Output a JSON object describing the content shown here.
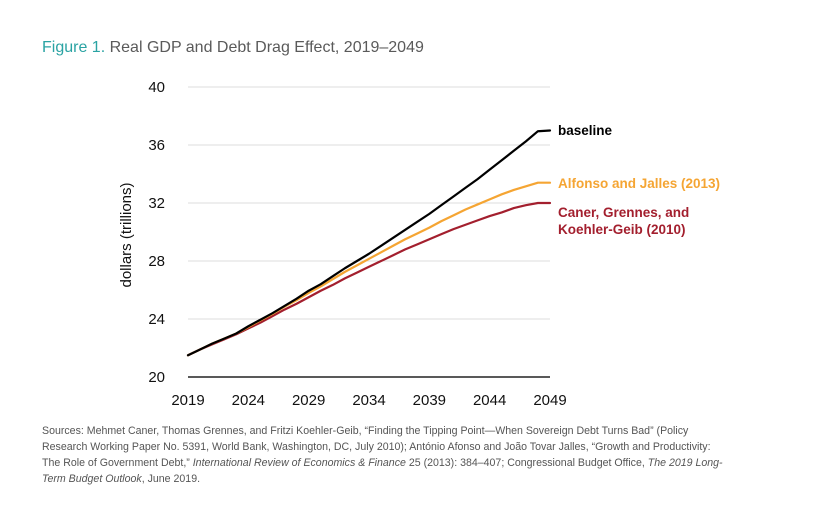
{
  "figure": {
    "label": "Figure 1.",
    "title": "Real GDP and Debt Drag Effect, 2019–2049"
  },
  "chart_data": {
    "type": "line",
    "title": "Real GDP and Debt Drag Effect, 2019–2049",
    "xlabel": "",
    "ylabel": "dollars (trillions)",
    "xlim": [
      2019,
      2049
    ],
    "ylim": [
      20,
      40
    ],
    "xticks": [
      2019,
      2024,
      2029,
      2034,
      2039,
      2044,
      2049
    ],
    "yticks": [
      20,
      24,
      28,
      32,
      36,
      40
    ],
    "grid": "horizontal",
    "legend": "direct labels at right end of lines",
    "x": [
      2019,
      2020,
      2021,
      2022,
      2023,
      2024,
      2025,
      2026,
      2027,
      2028,
      2029,
      2030,
      2031,
      2032,
      2033,
      2034,
      2035,
      2036,
      2037,
      2038,
      2039,
      2040,
      2041,
      2042,
      2043,
      2044,
      2045,
      2046,
      2047,
      2048,
      2049
    ],
    "series": [
      {
        "name": "baseline",
        "color": "#000000",
        "values": [
          21.5,
          21.9,
          22.3,
          22.65,
          23.0,
          23.5,
          23.95,
          24.4,
          24.9,
          25.4,
          25.95,
          26.4,
          26.95,
          27.5,
          28.0,
          28.5,
          29.05,
          29.6,
          30.15,
          30.7,
          31.25,
          31.85,
          32.45,
          33.05,
          33.65,
          34.3,
          34.95,
          35.6,
          36.25,
          36.95,
          37.0
        ]
      },
      {
        "name": "Alfonso and Jalles (2013)",
        "color": "#f5a533",
        "values": [
          21.5,
          21.9,
          22.3,
          22.65,
          23.0,
          23.45,
          23.9,
          24.35,
          24.85,
          25.3,
          25.8,
          26.25,
          26.75,
          27.25,
          27.7,
          28.15,
          28.6,
          29.05,
          29.5,
          29.9,
          30.3,
          30.75,
          31.15,
          31.55,
          31.9,
          32.25,
          32.6,
          32.9,
          33.15,
          33.4,
          33.4
        ]
      },
      {
        "name": "Caner, Grennes, and Koehler-Geib (2010)",
        "color": "#a31f2e",
        "values": [
          21.5,
          21.9,
          22.25,
          22.6,
          22.95,
          23.35,
          23.75,
          24.2,
          24.65,
          25.05,
          25.5,
          25.95,
          26.35,
          26.8,
          27.2,
          27.6,
          28.0,
          28.4,
          28.8,
          29.15,
          29.5,
          29.85,
          30.2,
          30.5,
          30.8,
          31.1,
          31.35,
          31.65,
          31.85,
          32.0,
          32.0
        ]
      }
    ],
    "series_labels": [
      {
        "lines": [
          "baseline"
        ]
      },
      {
        "lines": [
          "Alfonso and Jalles (2013)"
        ]
      },
      {
        "lines": [
          "Caner, Grennes, and",
          "Koehler-Geib (2010)"
        ]
      }
    ]
  },
  "sources": {
    "line1": "Sources: Mehmet Caner, Thomas Grennes, and Fritzi Koehler-Geib, “Finding the Tipping Point—When Sovereign Debt Turns Bad” (Policy",
    "line2": "Research Working Paper No. 5391, World Bank, Washington, DC, July 2010); António Afonso and João Tovar Jalles, “Growth and Productivity:",
    "line3_a": "The Role of Government Debt,” ",
    "line3_b": "International Review of Economics & Finance",
    "line3_c": " 25 (2013): 384–407; Congressional Budget Office, ",
    "line3_d": "The 2019 Long-",
    "line4_a": "Term Budget Outlook",
    "line4_b": ", June 2019."
  }
}
